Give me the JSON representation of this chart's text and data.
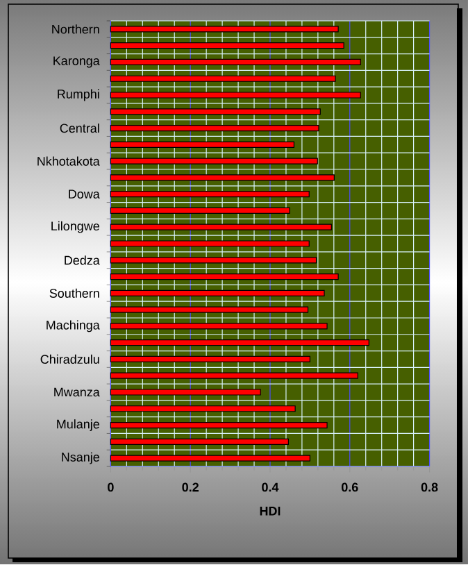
{
  "chart_data": {
    "type": "bar",
    "orientation": "horizontal",
    "xlabel": "HDI",
    "categories": [
      "Northern",
      null,
      "Karonga",
      null,
      "Rumphi",
      null,
      "Central",
      null,
      "Nkhotakota",
      null,
      "Dowa",
      null,
      "Lilongwe",
      null,
      "Dedza",
      null,
      "Southern",
      null,
      "Machinga",
      null,
      "Chiradzulu",
      null,
      "Mwanza",
      null,
      "Mulanje",
      null,
      "Nsanje"
    ],
    "values": [
      0.571,
      0.585,
      0.627,
      0.564,
      0.627,
      0.526,
      0.522,
      0.46,
      0.519,
      0.561,
      0.498,
      0.449,
      0.554,
      0.498,
      0.516,
      0.571,
      0.536,
      0.495,
      0.543,
      0.648,
      0.5,
      0.62,
      0.376,
      0.463,
      0.543,
      0.446,
      0.5
    ],
    "color": "#ff0000",
    "xlim": [
      0,
      0.8
    ],
    "xticks": [
      0,
      0.2,
      0.4,
      0.6,
      0.8
    ],
    "grid": true
  }
}
